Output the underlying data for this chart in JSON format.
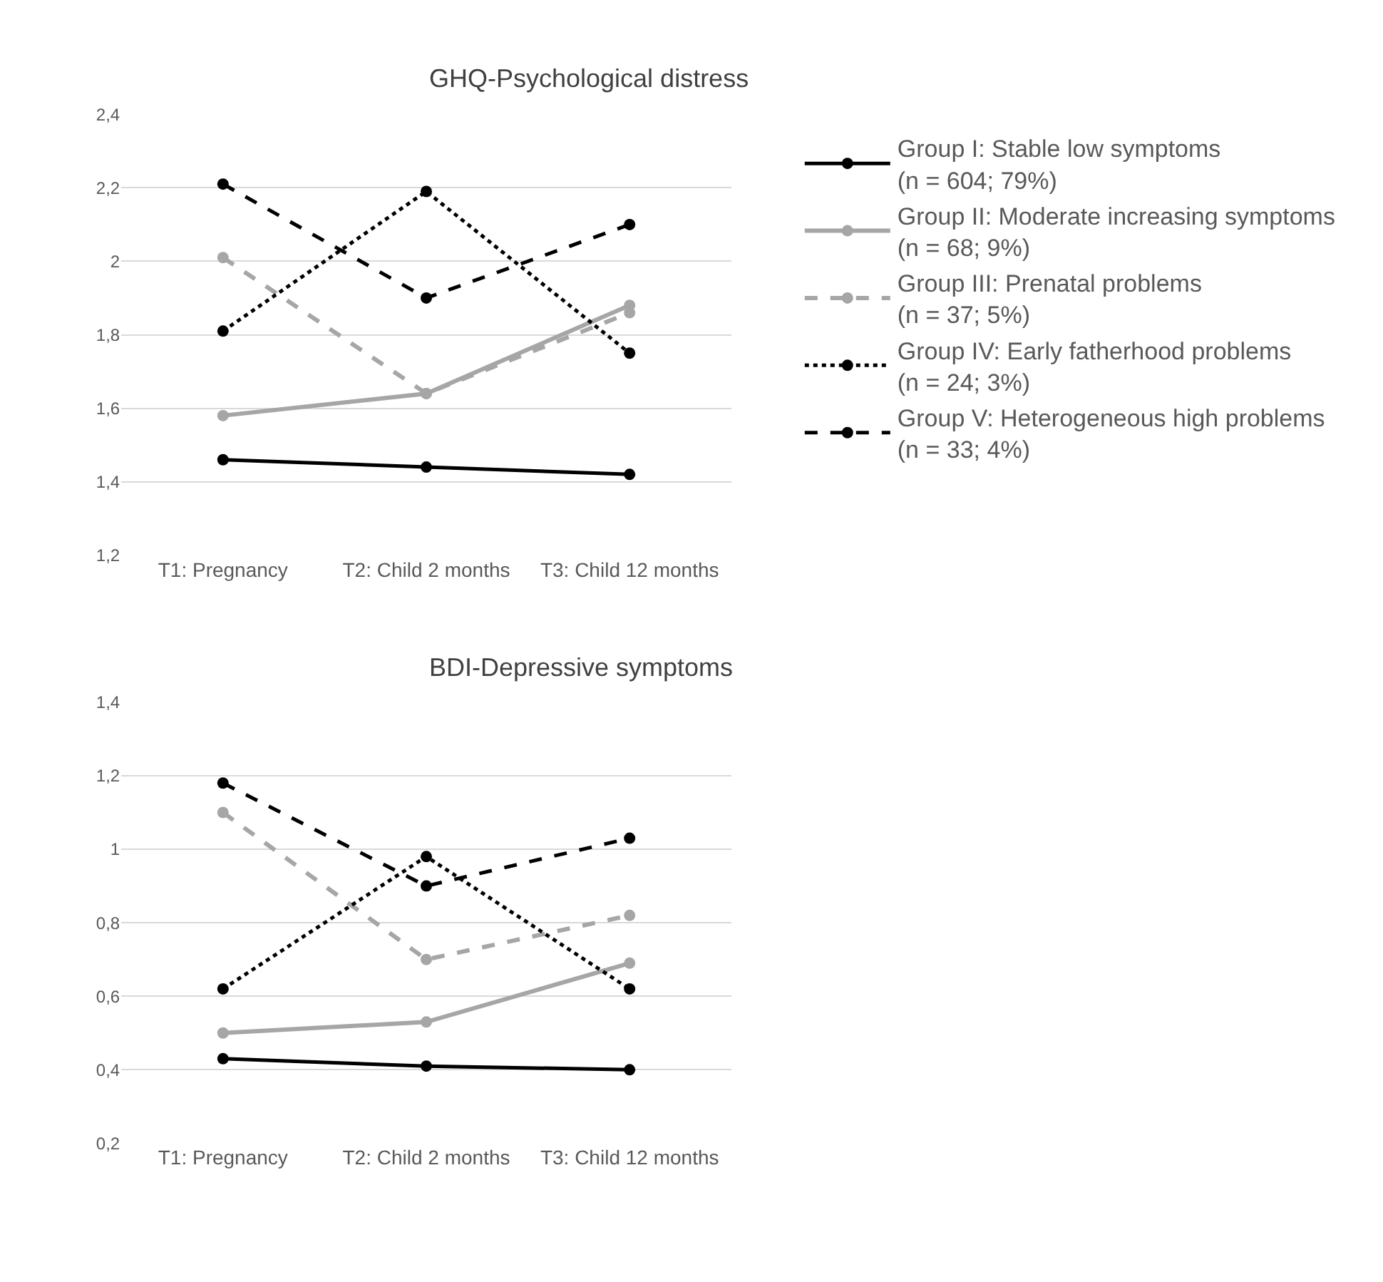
{
  "chart_data": [
    {
      "type": "line",
      "title": "GHQ-Psychological distress",
      "categories": [
        "T1: Pregnancy",
        "T2: Child 2 months",
        "T3: Child 12 months"
      ],
      "ylim": [
        1.2,
        2.4
      ],
      "yticks": [
        {
          "value": 1.2,
          "label": "1,2"
        },
        {
          "value": 1.4,
          "label": "1,4"
        },
        {
          "value": 1.6,
          "label": "1,6"
        },
        {
          "value": 1.8,
          "label": "1,8"
        },
        {
          "value": 2,
          "label": "2"
        },
        {
          "value": 2.2,
          "label": "2,2"
        },
        {
          "value": 2.4,
          "label": "2,4"
        }
      ],
      "grid": "y",
      "legend": "right",
      "marker": "circle",
      "series": [
        {
          "name": "Group I: Stable low symptoms (n = 604; 79%)",
          "color": "#000000",
          "line_style": "solid",
          "values": [
            1.46,
            1.44,
            1.42
          ]
        },
        {
          "name": "Group II: Moderate increasing symptoms (n = 68; 9%)",
          "color": "#a6a6a6",
          "line_style": "solid",
          "values": [
            1.58,
            1.64,
            1.88
          ]
        },
        {
          "name": "Group III: Prenatal problems (n = 37; 5%)",
          "color": "#a6a6a6",
          "line_style": "dashed",
          "values": [
            2.01,
            1.64,
            1.86
          ]
        },
        {
          "name": "Group IV: Early fatherhood problems (n = 24; 3%)",
          "color": "#000000",
          "line_style": "dotted",
          "values": [
            1.81,
            2.19,
            1.75
          ]
        },
        {
          "name": "Group V: Heterogeneous high problems (n = 33; 4%)",
          "color": "#000000",
          "line_style": "dashed",
          "values": [
            2.21,
            1.9,
            2.1
          ]
        }
      ]
    },
    {
      "type": "line",
      "title": "BDI-Depressive symptoms",
      "categories": [
        "T1: Pregnancy",
        "T2: Child 2 months",
        "T3: Child 12 months"
      ],
      "ylim": [
        0.2,
        1.4
      ],
      "yticks": [
        {
          "value": 0.2,
          "label": "0,2"
        },
        {
          "value": 0.4,
          "label": "0,4"
        },
        {
          "value": 0.6,
          "label": "0,6"
        },
        {
          "value": 0.8,
          "label": "0,8"
        },
        {
          "value": 1,
          "label": "1"
        },
        {
          "value": 1.2,
          "label": "1,2"
        },
        {
          "value": 1.4,
          "label": "1,4"
        }
      ],
      "grid": "y",
      "marker": "circle",
      "series": [
        {
          "color": "#000000",
          "line_style": "solid",
          "values": [
            0.43,
            0.41,
            0.4
          ]
        },
        {
          "color": "#a6a6a6",
          "line_style": "solid",
          "values": [
            0.5,
            0.53,
            0.69
          ]
        },
        {
          "color": "#a6a6a6",
          "line_style": "dashed",
          "values": [
            1.1,
            0.7,
            0.82
          ]
        },
        {
          "color": "#000000",
          "line_style": "dotted",
          "values": [
            0.62,
            0.98,
            0.62
          ]
        },
        {
          "color": "#000000",
          "line_style": "dashed",
          "values": [
            1.18,
            0.9,
            1.03
          ]
        }
      ]
    }
  ]
}
